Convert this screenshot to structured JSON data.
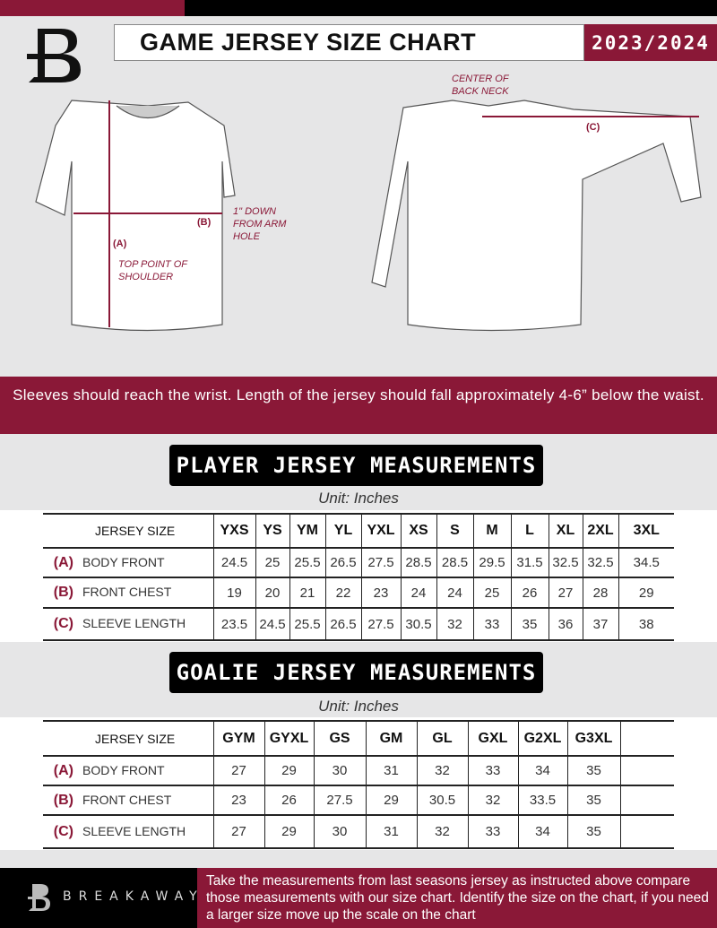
{
  "header": {
    "title": "GAME JERSEY SIZE CHART",
    "season": "2023/2024"
  },
  "diagram": {
    "center_back_neck": "CENTER OF BACK NECK",
    "down_from_arm": "1\" DOWN FROM ARM HOLE",
    "top_shoulder": "TOP POINT OF SHOULDER",
    "label_a": "(A)",
    "label_b": "(B)",
    "label_c": "(C)"
  },
  "instruction": "Sleeves should reach the wrist. Length of the jersey should fall approximately 4-6” below the waist.",
  "player": {
    "title": "PLAYER JERSEY MEASUREMENTS",
    "unit": "Unit: Inches",
    "header": "JERSEY SIZE",
    "sizes": [
      "YXS",
      "YS",
      "YM",
      "YL",
      "YXL",
      "XS",
      "S",
      "M",
      "L",
      "XL",
      "2XL",
      "3XL"
    ],
    "rows": [
      {
        "letter": "(A)",
        "label": "BODY FRONT",
        "values": [
          "24.5",
          "25",
          "25.5",
          "26.5",
          "27.5",
          "28.5",
          "28.5",
          "29.5",
          "31.5",
          "32.5",
          "32.5",
          "34.5"
        ]
      },
      {
        "letter": "(B)",
        "label": "FRONT CHEST",
        "values": [
          "19",
          "20",
          "21",
          "22",
          "23",
          "24",
          "24",
          "25",
          "26",
          "27",
          "28",
          "29"
        ]
      },
      {
        "letter": "(C)",
        "label": "SLEEVE LENGTH",
        "values": [
          "23.5",
          "24.5",
          "25.5",
          "26.5",
          "27.5",
          "30.5",
          "32",
          "33",
          "35",
          "36",
          "37",
          "38"
        ]
      }
    ]
  },
  "goalie": {
    "title": "GOALIE JERSEY MEASUREMENTS",
    "unit": "Unit: Inches",
    "header": "JERSEY SIZE",
    "sizes": [
      "GYM",
      "GYXL",
      "GS",
      "GM",
      "GL",
      "GXL",
      "G2XL",
      "G3XL",
      ""
    ],
    "rows": [
      {
        "letter": "(A)",
        "label": "BODY FRONT",
        "values": [
          "27",
          "29",
          "30",
          "31",
          "32",
          "33",
          "34",
          "35",
          ""
        ]
      },
      {
        "letter": "(B)",
        "label": "FRONT CHEST",
        "values": [
          "23",
          "26",
          "27.5",
          "29",
          "30.5",
          "32",
          "33.5",
          "35",
          ""
        ]
      },
      {
        "letter": "(C)",
        "label": "SLEEVE LENGTH",
        "values": [
          "27",
          "29",
          "30",
          "31",
          "32",
          "33",
          "34",
          "35",
          ""
        ]
      }
    ]
  },
  "footer": {
    "brand": "BREAKAWAY",
    "text": "Take the measurements from last seasons jersey as instructed above compare those measurements  with our size chart. Identify the size on the chart, if you need a larger size move up the scale on the chart"
  },
  "colors": {
    "accent": "#8a1837",
    "dark": "#000000"
  }
}
